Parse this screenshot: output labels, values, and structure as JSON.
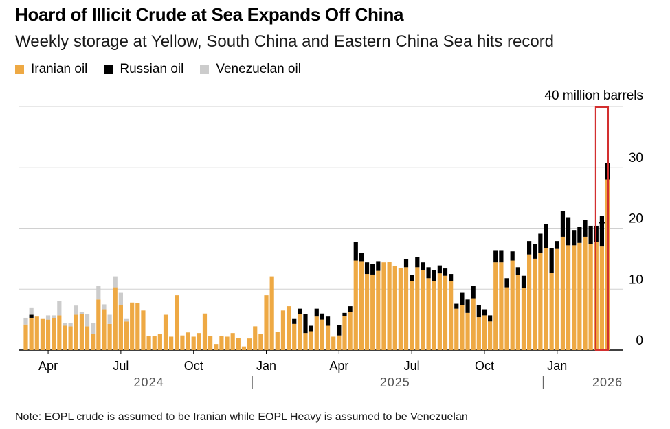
{
  "title": "Hoard of Illicit Crude at Sea Expands Off China",
  "subtitle": "Weekly storage at Yellow, South China and Eastern China Sea hits record",
  "note": "Note: EOPL crude is assumed to be Iranian while EOPL Heavy is assumed to be Venezuelan",
  "legend": [
    {
      "label": "Iranian oil",
      "color": "#eea944"
    },
    {
      "label": "Russian oil",
      "color": "#000000"
    },
    {
      "label": "Venezuelan oil",
      "color": "#cccccc"
    }
  ],
  "chart_data": {
    "type": "bar",
    "stacked": true,
    "title": "Hoard of Illicit Crude at Sea Expands Off China",
    "subtitle": "Weekly storage at Yellow, South China and Eastern China Sea hits record",
    "unit_label": "40 million barrels",
    "ylim": [
      0,
      40
    ],
    "yticks": [
      {
        "value": 0,
        "label": "0"
      },
      {
        "value": 10,
        "label": "10"
      },
      {
        "value": 20,
        "label": "20"
      },
      {
        "value": 30,
        "label": "30"
      },
      {
        "value": 40,
        "label": "40 million barrels"
      }
    ],
    "month_ticks": [
      {
        "label": "Apr",
        "index": 4
      },
      {
        "label": "Jul",
        "index": 17
      },
      {
        "label": "Oct",
        "index": 30
      },
      {
        "label": "Jan",
        "index": 43
      },
      {
        "label": "Apr",
        "index": 56
      },
      {
        "label": "Jul",
        "index": 69
      },
      {
        "label": "Oct",
        "index": 82
      },
      {
        "label": "Jan",
        "index": 95
      }
    ],
    "year_labels": [
      {
        "label": "2024",
        "index": 22
      },
      {
        "label": "2025",
        "index": 66
      },
      {
        "label": "2026",
        "index": 104
      }
    ],
    "year_dividers": [
      40,
      92
    ],
    "highlight_index": 103,
    "series": [
      {
        "name": "Iranian oil",
        "color": "#eea944",
        "values": [
          4.2,
          5.3,
          5.5,
          5.1,
          5.0,
          5.2,
          5.7,
          4.0,
          3.9,
          5.8,
          5.9,
          3.9,
          2.7,
          8.3,
          6.7,
          4.3,
          10.3,
          7.4,
          4.7,
          7.8,
          7.7,
          6.5,
          2.3,
          2.3,
          2.7,
          5.8,
          2.2,
          9.0,
          2.4,
          2.9,
          2.2,
          2.8,
          6.0,
          2.3,
          1.0,
          2.3,
          2.2,
          2.8,
          2.0,
          0.6,
          1.9,
          3.9,
          2.7,
          9.0,
          12.1,
          3.0,
          6.5,
          7.2,
          4.3,
          5.9,
          2.8,
          3.1,
          5.5,
          5.0,
          4.0,
          2.2,
          2.4,
          5.6,
          6.2,
          14.7,
          14.6,
          12.5,
          12.4,
          13.0,
          14.4,
          14.5,
          13.8,
          13.5,
          13.6,
          11.3,
          13.6,
          13.1,
          11.8,
          11.3,
          12.6,
          12.2,
          11.3,
          6.8,
          7.4,
          6.1,
          8.5,
          5.4,
          5.7,
          4.7,
          14.4,
          14.4,
          10.3,
          14.7,
          12.3,
          10.2,
          15.7,
          15.0,
          15.9,
          16.7,
          12.7,
          16.6,
          18.6,
          17.2,
          17.2,
          17.6,
          18.6,
          17.4,
          17.8,
          17.0,
          28.0
        ]
      },
      {
        "name": "Russian oil",
        "color": "#000000",
        "values": [
          0,
          0.5,
          0,
          0,
          0,
          0,
          0,
          0,
          0,
          0,
          0,
          0,
          0,
          0,
          0,
          0,
          0,
          0,
          0,
          0,
          0,
          0,
          0,
          0,
          0,
          0,
          0,
          0,
          0,
          0,
          0,
          0,
          0,
          0,
          0,
          0,
          0,
          0,
          0,
          0,
          0,
          0,
          0,
          0,
          0,
          0,
          0,
          0,
          0.8,
          0.9,
          3.1,
          0.9,
          1.3,
          1.0,
          1.5,
          0,
          1.7,
          0.5,
          1.0,
          3.0,
          1.3,
          1.9,
          1.7,
          1.6,
          0,
          0,
          0,
          0,
          1.3,
          1.0,
          1.7,
          1.3,
          1.8,
          1.8,
          1.3,
          1.2,
          1.2,
          0.8,
          2.0,
          2.2,
          2.0,
          2.0,
          1.0,
          1.0,
          2.0,
          2.0,
          1.5,
          1.5,
          1.3,
          2.0,
          2.2,
          2.4,
          3.2,
          4.0,
          4.0,
          1.3,
          4.2,
          4.6,
          2.5,
          2.6,
          2.8,
          3.0,
          2.6,
          5.0,
          2.7
        ]
      },
      {
        "name": "Venezuelan oil",
        "color": "#cccccc",
        "values": [
          1.1,
          1.2,
          0,
          0,
          0.7,
          0.5,
          2.3,
          0.5,
          0.5,
          1.5,
          0.4,
          2.0,
          1.8,
          2.2,
          0.8,
          1.5,
          1.8,
          2.0,
          0.4,
          0,
          0,
          0,
          0,
          0,
          0,
          0,
          0,
          0,
          0,
          0,
          0,
          0,
          0,
          0,
          0,
          0,
          0,
          0,
          0,
          0,
          0,
          0,
          0,
          0,
          0,
          0,
          0,
          0,
          0,
          0,
          0,
          0,
          0,
          0,
          0,
          0,
          0,
          0,
          0,
          0,
          0,
          0,
          0,
          0,
          0,
          0,
          0,
          0,
          0,
          0,
          0,
          0,
          0,
          0,
          0,
          0,
          0,
          0,
          0,
          0,
          0,
          0,
          0,
          0,
          0,
          0,
          0,
          0,
          0,
          0,
          0,
          0,
          0,
          0,
          0,
          0,
          0,
          0,
          0,
          0,
          0,
          0,
          0,
          0,
          0,
          0
        ]
      }
    ]
  }
}
